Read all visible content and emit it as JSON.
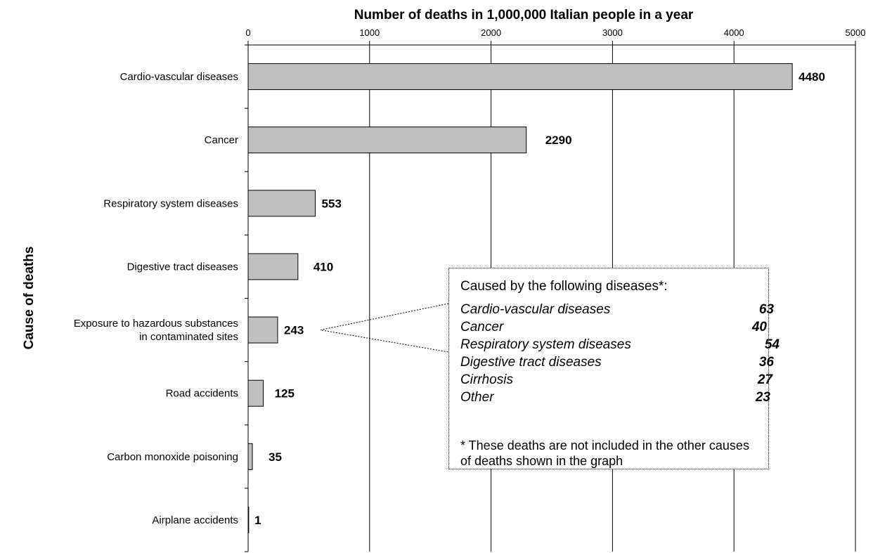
{
  "chart_data": {
    "type": "bar",
    "orientation": "horizontal",
    "title": "Number of deaths in 1,000,000 Italian people in a year",
    "ylabel": "Cause of deaths",
    "x_ticks": [
      "0",
      "1000",
      "2000",
      "3000",
      "4000",
      "5000"
    ],
    "xlim": [
      0,
      5000
    ],
    "grid": "vertical",
    "bar_color": "#c0c0c0",
    "categories": [
      [
        "Cardio-vascular diseases"
      ],
      [
        "Cancer"
      ],
      [
        "Respiratory system diseases"
      ],
      [
        "Digestive tract diseases"
      ],
      [
        "Exposure to hazardous substances",
        "in contaminated sites"
      ],
      [
        "Road accidents"
      ],
      [
        "Carbon monoxide poisoning"
      ],
      [
        "Airplane accidents"
      ]
    ],
    "values": [
      4480,
      2290,
      553,
      410,
      243,
      125,
      35,
      1
    ],
    "value_labels": [
      "4480",
      "2290",
      "553",
      "410",
      "243",
      "125",
      "35",
      "1"
    ],
    "annotation": {
      "heading": "Caused by the following diseases*:",
      "items": [
        {
          "label": "Cardio-vascular diseases",
          "value": "63"
        },
        {
          "label": "Cancer",
          "value": "40"
        },
        {
          "label": "Respiratory system diseases",
          "value": "54"
        },
        {
          "label": "Digestive tract diseases",
          "value": "36"
        },
        {
          "label": "Cirrhosis",
          "value": "27"
        },
        {
          "label": "Other",
          "value": "23"
        }
      ],
      "note": "* These deaths are not included in the other causes of deaths shown in the graph"
    }
  }
}
